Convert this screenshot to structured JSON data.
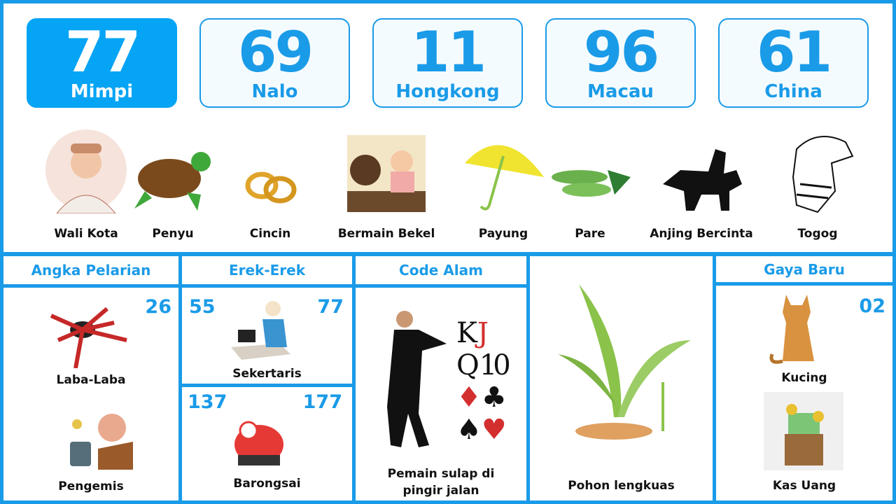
{
  "numbers": [
    {
      "value": "77",
      "label": "Mimpi",
      "active": true
    },
    {
      "value": "69",
      "label": "Nalo"
    },
    {
      "value": "11",
      "label": "Hongkong"
    },
    {
      "value": "96",
      "label": "Macau"
    },
    {
      "value": "61",
      "label": "China"
    }
  ],
  "items": [
    {
      "label": "Wali Kota",
      "icon": "mayor-image"
    },
    {
      "label": "Penyu",
      "icon": "turtle-image"
    },
    {
      "label": "Cincin",
      "icon": "rings-image"
    },
    {
      "label": "Bermain Bekel",
      "icon": "playing-jacks-image"
    },
    {
      "label": "Payung",
      "icon": "umbrella-image"
    },
    {
      "label": "Pare",
      "icon": "bitter-melon-image"
    },
    {
      "label": "Anjing Bercinta",
      "icon": "dogs-image"
    },
    {
      "label": "Togog",
      "icon": "wayang-image"
    }
  ],
  "angka_pelarian": {
    "title": "Angka Pelarian",
    "number": "26",
    "items": [
      {
        "label": "Laba-Laba"
      },
      {
        "label": "Pengemis"
      }
    ]
  },
  "erek_erek": {
    "title": "Erek-Erek",
    "rows": [
      {
        "left": "55",
        "right": "77",
        "label": "Sekertaris"
      },
      {
        "left": "137",
        "right": "177",
        "label": "Barongsai"
      }
    ]
  },
  "code_alam": {
    "title": "Code Alam",
    "label": "Pemain sulap di pingir jalan",
    "cards": [
      "K",
      "J",
      "Q",
      "10"
    ]
  },
  "pohon": {
    "label": "Pohon lengkuas"
  },
  "gaya_baru": {
    "title": "Gaya Baru",
    "number": "02",
    "items": [
      {
        "label": "Kucing"
      },
      {
        "label": "Kas Uang"
      }
    ]
  },
  "colors": {
    "accent": "#1a9be8",
    "active": "#06a4f4"
  }
}
